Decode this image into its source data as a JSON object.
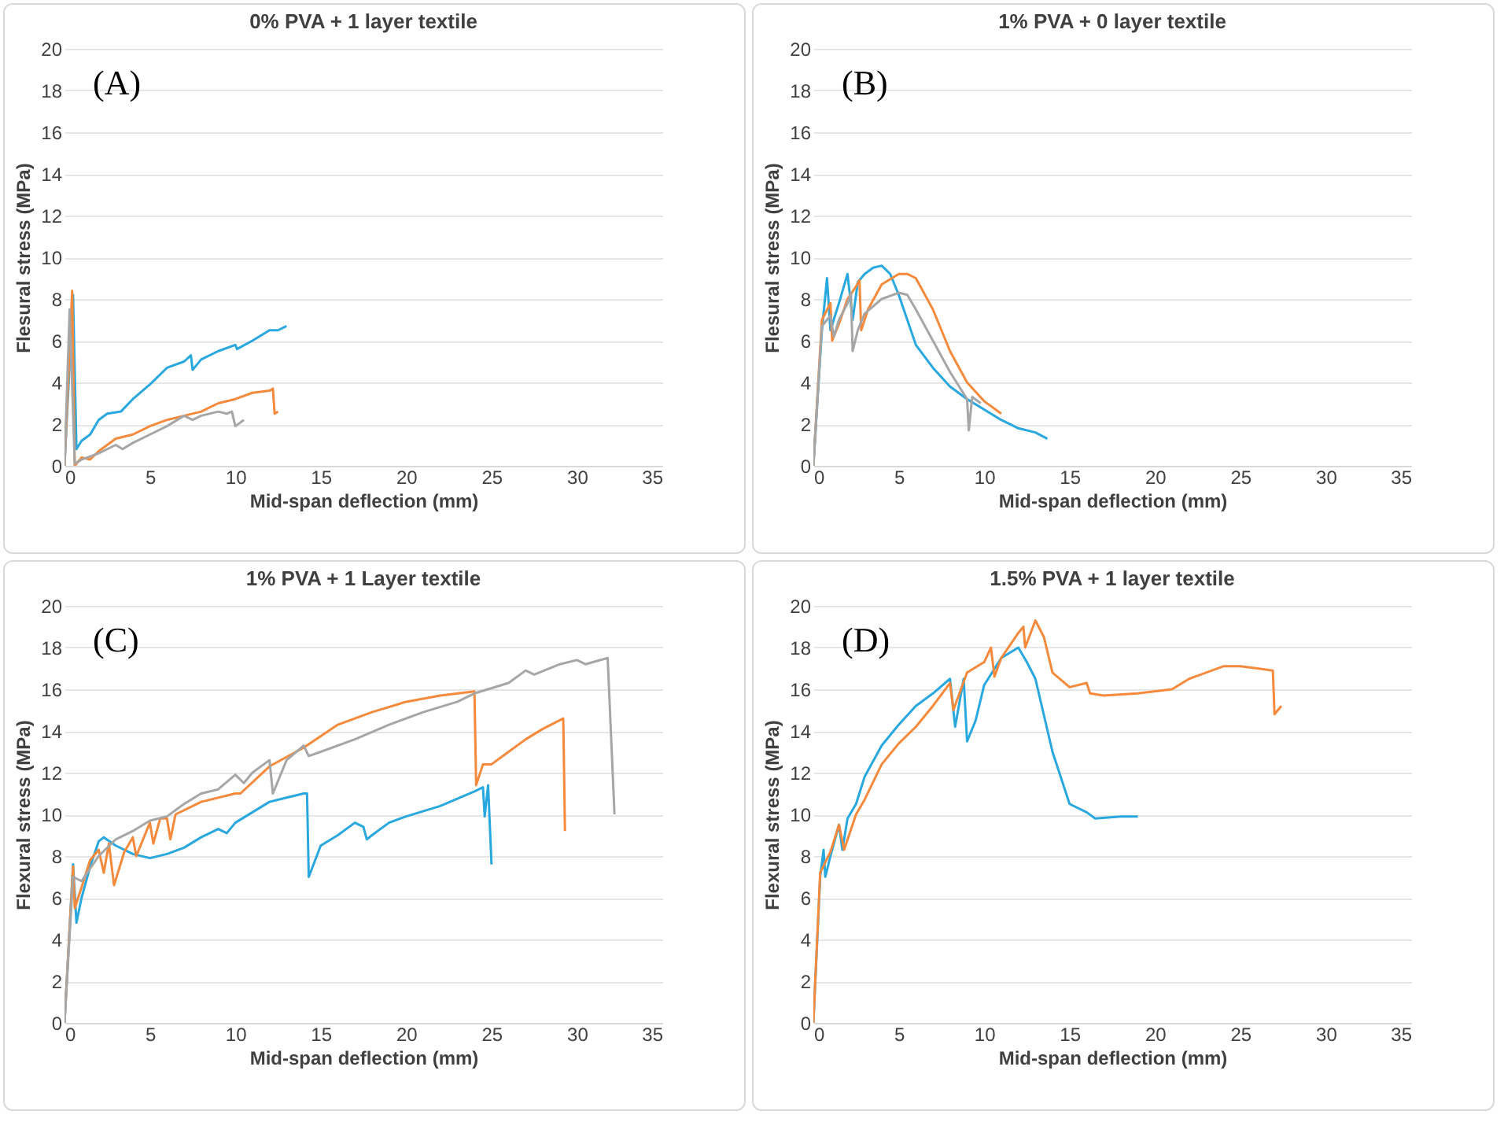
{
  "chart_data": [
    {
      "type": "line",
      "title": "0% PVA + 1 layer textile",
      "xlabel": "Mid-span deflection (mm)",
      "ylabel": "Flesural stress (MPa)",
      "xlim": [
        0,
        35
      ],
      "xticks": [
        0,
        5,
        10,
        15,
        20,
        25,
        30,
        35
      ],
      "ylim": [
        0,
        20
      ],
      "yticks": [
        0,
        2,
        4,
        6,
        8,
        10,
        12,
        14,
        16,
        18,
        20
      ],
      "grid": "y",
      "line_style": "solid",
      "annotations": [
        "(A)"
      ],
      "series": [
        {
          "color": "#29a8e0",
          "x": [
            0,
            0.5,
            0.7,
            1,
            1.5,
            2,
            2.5,
            3.3,
            4,
            5,
            6,
            7,
            7.4,
            7.5,
            8,
            9,
            10,
            10.1,
            11,
            12,
            12.5,
            13
          ],
          "values": [
            0,
            8.2,
            0.8,
            1.2,
            1.5,
            2.2,
            2.5,
            2.6,
            3.2,
            3.9,
            4.7,
            5.0,
            5.3,
            4.6,
            5.1,
            5.5,
            5.8,
            5.6,
            6.0,
            6.5,
            6.5,
            6.7
          ]
        },
        {
          "color": "#f58a3c",
          "x": [
            0,
            0.45,
            0.6,
            1,
            1.5,
            2,
            3,
            4,
            5,
            6,
            7,
            8,
            9,
            10,
            11,
            12,
            12.2,
            12.3,
            12.5
          ],
          "values": [
            0,
            8.4,
            0,
            0.4,
            0.3,
            0.7,
            1.3,
            1.5,
            1.9,
            2.2,
            2.4,
            2.6,
            3.0,
            3.2,
            3.5,
            3.6,
            3.7,
            2.5,
            2.6
          ]
        },
        {
          "color": "#a6a6a6",
          "x": [
            0,
            0.3,
            0.6,
            1,
            2,
            3,
            3.4,
            4,
            5,
            6,
            7,
            7.5,
            8,
            9,
            9.5,
            9.8,
            10,
            10.5
          ],
          "values": [
            0,
            7.5,
            0.1,
            0.3,
            0.6,
            1.0,
            0.8,
            1.1,
            1.5,
            1.9,
            2.4,
            2.2,
            2.4,
            2.6,
            2.5,
            2.6,
            1.9,
            2.2
          ]
        }
      ]
    },
    {
      "type": "line",
      "title": "1% PVA + 0 layer textile",
      "xlabel": "Mid-span deflection (mm)",
      "ylabel": "Flesural stress (MPa)",
      "xlim": [
        0,
        35
      ],
      "xticks": [
        0,
        5,
        10,
        15,
        20,
        25,
        30,
        35
      ],
      "ylim": [
        0,
        20
      ],
      "yticks": [
        0,
        2,
        4,
        6,
        8,
        10,
        12,
        14,
        16,
        18,
        20
      ],
      "grid": "y",
      "line_style": "solid",
      "annotations": [
        "(B)"
      ],
      "series": [
        {
          "color": "#29a8e0",
          "x": [
            0,
            0.5,
            0.8,
            1,
            1.5,
            2,
            2.3,
            2.6,
            3,
            3.5,
            4,
            4.5,
            5,
            5.5,
            6,
            7,
            8,
            9,
            10,
            11,
            12,
            13,
            13.7
          ],
          "values": [
            0,
            6.5,
            9.0,
            6.5,
            7.8,
            9.2,
            7,
            8.8,
            9.2,
            9.5,
            9.6,
            9.2,
            8.2,
            7,
            5.8,
            4.7,
            3.8,
            3.2,
            2.7,
            2.2,
            1.8,
            1.6,
            1.3
          ]
        },
        {
          "color": "#f58a3c",
          "x": [
            0,
            0.5,
            1,
            1.1,
            1.5,
            2,
            2.5,
            2.7,
            2.8,
            3.2,
            4,
            5,
            5.5,
            6,
            7,
            8,
            9,
            10,
            11
          ],
          "values": [
            0,
            7,
            7.8,
            6,
            6.8,
            8,
            8.6,
            8.9,
            6.5,
            7.5,
            8.7,
            9.2,
            9.2,
            9.0,
            7.5,
            5.5,
            4.0,
            3.1,
            2.5
          ]
        },
        {
          "color": "#a6a6a6",
          "x": [
            0,
            0.5,
            1,
            1.2,
            1.5,
            2,
            2.2,
            2.3,
            2.6,
            3,
            4,
            5,
            5.5,
            6,
            7,
            8,
            9,
            9.1,
            9.3,
            9.8
          ],
          "values": [
            0,
            6.7,
            7.2,
            6.2,
            7,
            7.8,
            8.3,
            5.5,
            6.5,
            7.3,
            8.0,
            8.3,
            8.2,
            7.5,
            6.0,
            4.5,
            3.2,
            1.7,
            3.3,
            3.0
          ]
        }
      ]
    },
    {
      "type": "line",
      "title": "1% PVA + 1 Layer textile",
      "xlabel": "Mid-span deflection (mm)",
      "ylabel": "Flexural stress (MPa)",
      "xlim": [
        0,
        35
      ],
      "xticks": [
        0,
        5,
        10,
        15,
        20,
        25,
        30,
        35
      ],
      "ylim": [
        0,
        20
      ],
      "yticks": [
        0,
        2,
        4,
        6,
        8,
        10,
        12,
        14,
        16,
        18,
        20
      ],
      "grid": "y",
      "line_style": "solid",
      "annotations": [
        "(C)"
      ],
      "series": [
        {
          "color": "#29a8e0",
          "x": [
            0,
            0.5,
            0.7,
            1,
            1.5,
            2,
            2.3,
            3,
            4,
            5,
            6,
            7,
            8,
            9,
            9.5,
            10,
            11,
            12,
            13,
            14,
            14.2,
            14.3,
            15,
            16,
            17,
            17.5,
            17.7,
            18,
            19,
            20,
            22,
            24,
            24.5,
            24.6,
            24.8,
            25
          ],
          "values": [
            0,
            7.6,
            4.8,
            6,
            7.5,
            8.7,
            8.9,
            8.5,
            8.1,
            7.9,
            8.1,
            8.4,
            8.9,
            9.3,
            9.1,
            9.6,
            10.1,
            10.6,
            10.8,
            11.0,
            11.0,
            7.0,
            8.5,
            9.0,
            9.6,
            9.4,
            8.8,
            9.0,
            9.6,
            9.9,
            10.4,
            11.1,
            11.3,
            9.9,
            11.4,
            7.6
          ]
        },
        {
          "color": "#f58a3c",
          "x": [
            0,
            0.5,
            0.6,
            1,
            1.5,
            2,
            2.3,
            2.6,
            2.9,
            3.5,
            4,
            4.2,
            5,
            5.2,
            5.6,
            6,
            6.2,
            6.5,
            8,
            10,
            10.3,
            12,
            14,
            16,
            18,
            20,
            22,
            24,
            24.1,
            24.5,
            25,
            26,
            27,
            28,
            29.2,
            29.3
          ],
          "values": [
            0,
            7.5,
            5.5,
            6.5,
            7.8,
            8.3,
            7.2,
            8.6,
            6.6,
            8.2,
            8.9,
            8.0,
            9.6,
            8.6,
            9.8,
            9.8,
            8.8,
            10,
            10.6,
            11.0,
            11.0,
            12.3,
            13.2,
            14.3,
            14.9,
            15.4,
            15.7,
            15.9,
            11.4,
            12.4,
            12.4,
            13,
            13.6,
            14.1,
            14.6,
            9.2
          ]
        },
        {
          "color": "#a6a6a6",
          "x": [
            0,
            0.5,
            1,
            1.5,
            2,
            3,
            4,
            5,
            6,
            7,
            8,
            9,
            10,
            10.5,
            11,
            12,
            12.2,
            13,
            14,
            14.3,
            15,
            17,
            19,
            21,
            23,
            24,
            26,
            27,
            27.5,
            29,
            30,
            30.5,
            31.8,
            32.2
          ],
          "values": [
            0,
            7.0,
            6.8,
            7.4,
            8.0,
            8.8,
            9.2,
            9.7,
            9.9,
            10.5,
            11.0,
            11.2,
            11.9,
            11.5,
            12.0,
            12.6,
            11.0,
            12.6,
            13.3,
            12.8,
            13.0,
            13.6,
            14.3,
            14.9,
            15.4,
            15.8,
            16.3,
            16.9,
            16.7,
            17.2,
            17.4,
            17.2,
            17.5,
            10.0
          ]
        }
      ]
    },
    {
      "type": "line",
      "title": "1.5% PVA + 1 layer textile",
      "xlabel": "Mid-span deflection (mm)",
      "ylabel": "Flexural stress (MPa)",
      "xlim": [
        0,
        35
      ],
      "xticks": [
        0,
        5,
        10,
        15,
        20,
        25,
        30,
        35
      ],
      "ylim": [
        0,
        20
      ],
      "yticks": [
        0,
        2,
        4,
        6,
        8,
        10,
        12,
        14,
        16,
        18,
        20
      ],
      "grid": "y",
      "line_style": "solid",
      "annotations": [
        "(D)"
      ],
      "series": [
        {
          "color": "#29a8e0",
          "x": [
            0,
            0.4,
            0.6,
            0.7,
            1,
            1.5,
            1.7,
            2,
            2.5,
            3,
            4,
            5,
            6,
            7,
            8,
            8.3,
            8.8,
            9,
            9.5,
            10,
            11,
            12,
            12.5,
            13,
            14,
            15,
            16,
            16.5,
            18,
            19
          ],
          "values": [
            0,
            7,
            8.3,
            7,
            8,
            9.5,
            8.3,
            9.8,
            10.5,
            11.8,
            13.3,
            14.3,
            15.2,
            15.8,
            16.5,
            14.2,
            16.5,
            13.5,
            14.5,
            16.2,
            17.5,
            18,
            17.3,
            16.5,
            13,
            10.5,
            10.1,
            9.8,
            9.9,
            9.9
          ]
        },
        {
          "color": "#f58a3c",
          "x": [
            0,
            0.4,
            1,
            1.5,
            1.8,
            2.5,
            3,
            4,
            5,
            6,
            7,
            8,
            8.2,
            9,
            10,
            10.4,
            10.6,
            11,
            12,
            12.3,
            12.4,
            13,
            13.5,
            14,
            15,
            16,
            16.2,
            17,
            19,
            21,
            22,
            24,
            25,
            26,
            26.9,
            27,
            27.4
          ],
          "values": [
            0,
            7.2,
            8.2,
            9.5,
            8.3,
            10,
            10.7,
            12.4,
            13.4,
            14.2,
            15.2,
            16.3,
            15,
            16.8,
            17.3,
            18,
            16.6,
            17.5,
            18.7,
            19,
            18,
            19.3,
            18.5,
            16.8,
            16.1,
            16.3,
            15.8,
            15.7,
            15.8,
            16,
            16.5,
            17.1,
            17.1,
            17.0,
            16.9,
            14.8,
            15.2
          ]
        }
      ]
    }
  ]
}
